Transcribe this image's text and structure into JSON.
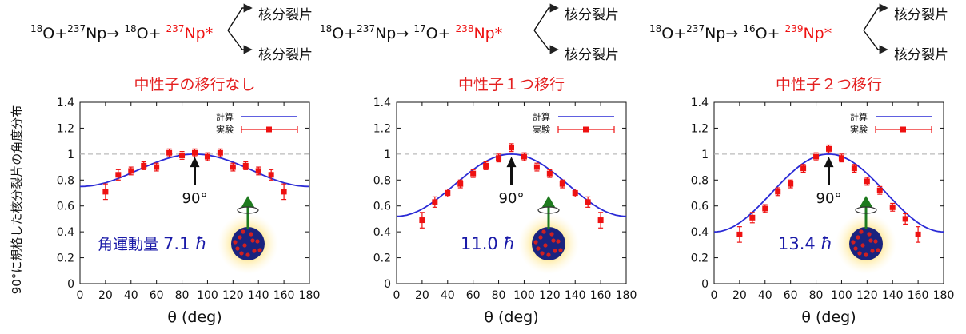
{
  "ylabel": "90°に規格した核分裂片の角度分布",
  "fragment_label": "核分裂片",
  "colors": {
    "calc": "#2b2bd6",
    "exp": "#ee1111",
    "title": "#e42020",
    "dark_blue": "#1a1aa8",
    "ref_line": "#bbbbbb",
    "arrow_green": "#1e7a1e",
    "glow": "#ffcc33",
    "nucleus": "#1a237e",
    "speck": "#d02020"
  },
  "chart_data": [
    {
      "type": "scatter",
      "title": "中性子の移行なし",
      "reaction": {
        "beam_mass": "18",
        "beam_el": "O",
        "target_mass": "237",
        "target_el": "Np",
        "arrow": "→",
        "ejectile_mass": "18",
        "ejectile_el": "O",
        "compound_mass": "237",
        "compound_el": "Np*",
        "plus": "+"
      },
      "xlabel": "θ (deg)",
      "xlim": [
        0,
        180
      ],
      "ylim": [
        0,
        1.4
      ],
      "xticks": [
        "0",
        "20",
        "40",
        "60",
        "80",
        "100",
        "120",
        "140",
        "160",
        "180"
      ],
      "yticks": [
        "0",
        "0.2",
        "0.4",
        "0.6",
        "0.8",
        "1",
        "1.2",
        "1.4"
      ],
      "legend": {
        "calc": "計算",
        "exp": "実験",
        "position": "top-right"
      },
      "reference_line": 1,
      "peak_label": "90°",
      "spin_text": {
        "prefix": "角運動量",
        "value": "7.1",
        "unit": "ħ"
      },
      "calc_amplitude": 0.25,
      "series": [
        {
          "name": "計算",
          "kind": "line",
          "formula": "1 - 0.25*cos²θ"
        },
        {
          "name": "実験",
          "kind": "points",
          "x": [
            20,
            30,
            40,
            50,
            60,
            70,
            80,
            90,
            100,
            110,
            120,
            130,
            140,
            150,
            160
          ],
          "y": [
            0.71,
            0.84,
            0.87,
            0.91,
            0.9,
            1.01,
            0.99,
            1.01,
            0.98,
            1.01,
            0.9,
            0.91,
            0.87,
            0.84,
            0.71
          ],
          "err": [
            0.06,
            0.04,
            0.03,
            0.03,
            0.03,
            0.03,
            0.03,
            0.03,
            0.03,
            0.03,
            0.03,
            0.03,
            0.03,
            0.04,
            0.06
          ]
        }
      ]
    },
    {
      "type": "scatter",
      "title": "中性子１つ移行",
      "reaction": {
        "beam_mass": "18",
        "beam_el": "O",
        "target_mass": "237",
        "target_el": "Np",
        "arrow": "→",
        "ejectile_mass": "17",
        "ejectile_el": "O",
        "compound_mass": "238",
        "compound_el": "Np*",
        "plus": "+"
      },
      "xlabel": "θ (deg)",
      "xlim": [
        0,
        180
      ],
      "ylim": [
        0,
        1.4
      ],
      "xticks": [
        "0",
        "20",
        "40",
        "60",
        "80",
        "100",
        "120",
        "140",
        "160",
        "180"
      ],
      "yticks": [
        "0",
        "0.2",
        "0.4",
        "0.6",
        "0.8",
        "1",
        "1.2",
        "1.4"
      ],
      "legend": {
        "calc": "計算",
        "exp": "実験",
        "position": "top-right"
      },
      "reference_line": 1,
      "peak_label": "90°",
      "spin_text": {
        "prefix": "",
        "value": "11.0",
        "unit": "ħ"
      },
      "calc_amplitude": 0.48,
      "series": [
        {
          "name": "計算",
          "kind": "line",
          "formula": "1 - 0.48*cos²θ"
        },
        {
          "name": "実験",
          "kind": "points",
          "x": [
            20,
            30,
            40,
            50,
            60,
            70,
            80,
            90,
            100,
            110,
            120,
            130,
            140,
            150,
            160
          ],
          "y": [
            0.49,
            0.63,
            0.7,
            0.77,
            0.85,
            0.91,
            0.97,
            1.05,
            0.98,
            0.9,
            0.85,
            0.77,
            0.7,
            0.63,
            0.49
          ],
          "err": [
            0.06,
            0.04,
            0.03,
            0.03,
            0.03,
            0.03,
            0.03,
            0.03,
            0.03,
            0.03,
            0.03,
            0.03,
            0.03,
            0.04,
            0.06
          ]
        }
      ]
    },
    {
      "type": "scatter",
      "title": "中性子２つ移行",
      "reaction": {
        "beam_mass": "18",
        "beam_el": "O",
        "target_mass": "237",
        "target_el": "Np",
        "arrow": "→",
        "ejectile_mass": "16",
        "ejectile_el": "O",
        "compound_mass": "239",
        "compound_el": "Np*",
        "plus": "+"
      },
      "xlabel": "θ (deg)",
      "xlim": [
        0,
        180
      ],
      "ylim": [
        0,
        1.4
      ],
      "xticks": [
        "0",
        "20",
        "40",
        "60",
        "80",
        "100",
        "120",
        "140",
        "160",
        "180"
      ],
      "yticks": [
        "0",
        "0.2",
        "0.4",
        "0.6",
        "0.8",
        "1",
        "1.2",
        "1.4"
      ],
      "legend": {
        "calc": "計算",
        "exp": "実験",
        "position": "top-right"
      },
      "reference_line": 1,
      "peak_label": "90°",
      "spin_text": {
        "prefix": "",
        "value": "13.4",
        "unit": "ħ"
      },
      "calc_amplitude": 0.6,
      "series": [
        {
          "name": "計算",
          "kind": "line",
          "formula": "1 - 0.6*cos²θ"
        },
        {
          "name": "実験",
          "kind": "points",
          "x": [
            20,
            30,
            40,
            50,
            60,
            70,
            80,
            90,
            100,
            110,
            120,
            130,
            140,
            150,
            160
          ],
          "y": [
            0.38,
            0.51,
            0.58,
            0.71,
            0.77,
            0.89,
            0.98,
            1.04,
            0.97,
            0.89,
            0.79,
            0.72,
            0.59,
            0.5,
            0.38
          ],
          "err": [
            0.06,
            0.04,
            0.03,
            0.03,
            0.03,
            0.03,
            0.03,
            0.03,
            0.03,
            0.03,
            0.03,
            0.03,
            0.03,
            0.04,
            0.06
          ]
        }
      ]
    }
  ]
}
